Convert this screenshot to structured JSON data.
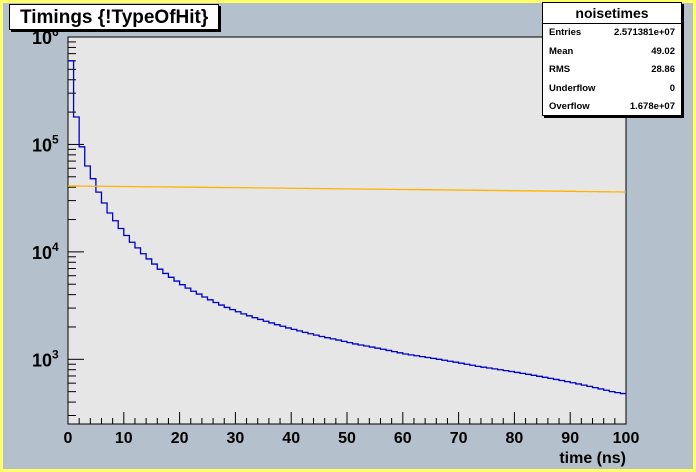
{
  "title": "Timings {!TypeOfHit}",
  "stats": {
    "name": "noisetimes",
    "rows": [
      {
        "label": "Entries",
        "value": "2.571381e+07"
      },
      {
        "label": "Mean",
        "value": "49.02"
      },
      {
        "label": "RMS",
        "value": "28.86"
      },
      {
        "label": "Underflow",
        "value": "0"
      },
      {
        "label": "Overflow",
        "value": "1.678e+07"
      }
    ]
  },
  "colors": {
    "canvas": "#ffff66",
    "pad": "#b4c0cc",
    "frame": "#e6e6e6",
    "series_blue": "#0000cc",
    "series_orange": "#ffb300"
  },
  "chart_data": {
    "type": "line",
    "title": "Timings {!TypeOfHit}",
    "xlabel": "time (ns)",
    "ylabel": "",
    "xlim": [
      0,
      100
    ],
    "ylim": [
      250,
      1000000
    ],
    "yscale": "log",
    "grid": false,
    "step": true,
    "x_ticks": [
      0,
      10,
      20,
      30,
      40,
      50,
      60,
      70,
      80,
      90,
      100
    ],
    "y_ticks": [
      {
        "value": 1000,
        "mantissa": "10",
        "exponent": "3"
      },
      {
        "value": 10000,
        "mantissa": "10",
        "exponent": "4"
      },
      {
        "value": 100000,
        "mantissa": "10",
        "exponent": "5"
      },
      {
        "value": 1000000,
        "mantissa": "10",
        "exponent": "6"
      }
    ],
    "bin_width": 1,
    "series": [
      {
        "color": "#0000cc",
        "values": [
          600000,
          180000,
          95000,
          63000,
          48000,
          36000,
          28500,
          23000,
          19500,
          16500,
          14200,
          12300,
          10900,
          9600,
          8600,
          7700,
          6900,
          6300,
          5800,
          5350,
          4950,
          4600,
          4300,
          4050,
          3800,
          3580,
          3380,
          3200,
          3040,
          2900,
          2770,
          2650,
          2540,
          2440,
          2350,
          2260,
          2180,
          2100,
          2030,
          1960,
          1900,
          1840,
          1780,
          1730,
          1680,
          1630,
          1590,
          1550,
          1510,
          1470,
          1430,
          1390,
          1360,
          1330,
          1300,
          1270,
          1240,
          1210,
          1180,
          1150,
          1120,
          1100,
          1080,
          1060,
          1040,
          1020,
          1000,
          980,
          960,
          940,
          920,
          900,
          880,
          860,
          845,
          830,
          815,
          800,
          785,
          770,
          755,
          740,
          725,
          710,
          695,
          680,
          665,
          650,
          635,
          620,
          605,
          590,
          575,
          560,
          545,
          530,
          515,
          500,
          490,
          480
        ]
      },
      {
        "color": "#ffb300",
        "values": [
          41000,
          41000,
          40900,
          40900,
          40800,
          40800,
          40800,
          40700,
          40700,
          40600,
          40600,
          40500,
          40500,
          40400,
          40400,
          40300,
          40300,
          40200,
          40200,
          40100,
          40100,
          40000,
          40000,
          39900,
          39900,
          39800,
          39800,
          39700,
          39700,
          39600,
          39600,
          39500,
          39500,
          39400,
          39400,
          39300,
          39300,
          39200,
          39200,
          39100,
          39100,
          39000,
          39000,
          38900,
          38900,
          38800,
          38800,
          38700,
          38700,
          38600,
          38600,
          38500,
          38500,
          38400,
          38400,
          38300,
          38300,
          38200,
          38200,
          38100,
          38100,
          38000,
          38000,
          37900,
          37900,
          37800,
          37800,
          37700,
          37700,
          37600,
          37600,
          37500,
          37500,
          37400,
          37400,
          37300,
          37300,
          37200,
          37200,
          37100,
          37100,
          37000,
          37000,
          36900,
          36900,
          36800,
          36800,
          36700,
          36700,
          36600,
          36600,
          36500,
          36500,
          36400,
          36400,
          36300,
          36300,
          36200,
          36200,
          36100
        ]
      }
    ]
  }
}
